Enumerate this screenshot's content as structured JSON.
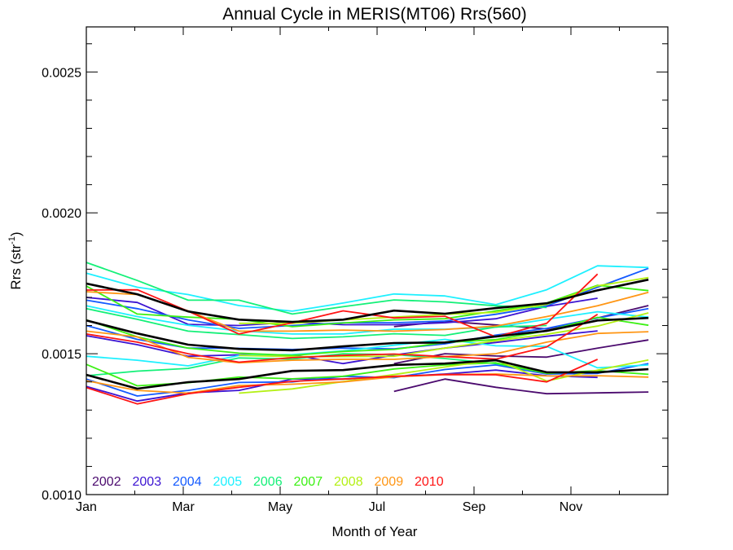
{
  "chart_data": {
    "type": "line",
    "title": "Annual Cycle in MERIS(MT06) Rrs(560)",
    "xlabel": "Month of Year",
    "ylabel": "Rrs (str",
    "ylabel_sup": "-1",
    "ylabel_close": ")",
    "xlim": [
      1,
      13
    ],
    "ylim": [
      0.001,
      0.00266
    ],
    "grid": false,
    "x_ticks": [
      {
        "value": 1,
        "label": "Jan"
      },
      {
        "value": 3,
        "label": "Mar"
      },
      {
        "value": 5,
        "label": "May"
      },
      {
        "value": 7,
        "label": "Jul"
      },
      {
        "value": 9,
        "label": "Sep"
      },
      {
        "value": 11,
        "label": "Nov"
      }
    ],
    "x_minor_ticks": [
      2,
      4,
      6,
      8,
      10,
      12
    ],
    "y_ticks": [
      {
        "value": 0.001,
        "label": "0.0010"
      },
      {
        "value": 0.0015,
        "label": "0.0015"
      },
      {
        "value": 0.002,
        "label": "0.0020"
      },
      {
        "value": 0.0025,
        "label": "0.0025"
      }
    ],
    "y_minor_ticks": [
      0.0011,
      0.0012,
      0.0013,
      0.0014,
      0.0016,
      0.0017,
      0.0018,
      0.0019,
      0.0021,
      0.0022,
      0.0023,
      0.0024,
      0.0026
    ],
    "legend_position": "bottom-left",
    "legend": [
      {
        "label": "2002",
        "color": "#4b0a6e"
      },
      {
        "label": "2003",
        "color": "#3c14d2"
      },
      {
        "label": "2004",
        "color": "#145aff"
      },
      {
        "label": "2005",
        "color": "#1ef0ff"
      },
      {
        "label": "2006",
        "color": "#14f078"
      },
      {
        "label": "2007",
        "color": "#3cf014"
      },
      {
        "label": "2008",
        "color": "#b4f014"
      },
      {
        "label": "2009",
        "color": "#ff9614"
      },
      {
        "label": "2010",
        "color": "#ff1414"
      }
    ],
    "x": [
      1.0,
      2.05,
      3.1,
      4.15,
      5.25,
      6.3,
      7.35,
      8.4,
      9.45,
      10.5,
      11.55,
      12.6
    ],
    "series": [
      {
        "name": "2002 upper",
        "color": "#4b0a6e",
        "values": [
          null,
          null,
          null,
          null,
          null,
          null,
          0.001596,
          0.001615,
          0.001602,
          0.001588,
          0.001627,
          0.001671
        ]
      },
      {
        "name": "2002 mean",
        "color": "#4b0a6e",
        "values": [
          null,
          null,
          null,
          null,
          null,
          null,
          0.001465,
          0.0015,
          0.001492,
          0.001488,
          0.00152,
          0.001549
        ]
      },
      {
        "name": "2002 lower",
        "color": "#4b0a6e",
        "values": [
          null,
          null,
          null,
          null,
          null,
          null,
          0.001366,
          0.00141,
          0.001381,
          0.001358,
          0.001361,
          0.001364
        ]
      },
      {
        "name": "2003 upper",
        "color": "#3c14d2",
        "values": [
          0.0017,
          0.001682,
          0.001604,
          0.0016,
          0.001612,
          0.001603,
          0.001603,
          0.00161,
          0.001624,
          0.001668,
          0.001697,
          null
        ]
      },
      {
        "name": "2003 mean",
        "color": "#3c14d2",
        "values": [
          0.001564,
          0.001532,
          0.001491,
          0.001496,
          0.001496,
          0.001465,
          0.001495,
          0.00152,
          0.00154,
          0.001562,
          0.001581,
          null
        ]
      },
      {
        "name": "2003 lower",
        "color": "#3c14d2",
        "values": [
          0.001384,
          0.001332,
          0.001361,
          0.00137,
          0.00141,
          0.00141,
          0.001418,
          0.001428,
          0.001442,
          0.001422,
          0.001416,
          null
        ]
      },
      {
        "name": "2004 upper",
        "color": "#145aff",
        "values": [
          0.00169,
          0.00166,
          0.00162,
          0.00159,
          0.0016,
          0.00161,
          0.00161,
          0.001616,
          0.00164,
          0.00167,
          0.001736,
          0.001803
        ]
      },
      {
        "name": "2004 mean",
        "color": "#145aff",
        "values": [
          0.0016,
          0.001551,
          0.00152,
          0.001519,
          0.001515,
          0.00152,
          0.001517,
          0.001535,
          0.001566,
          0.00159,
          0.001627,
          0.00166
        ]
      },
      {
        "name": "2004 lower",
        "color": "#145aff",
        "values": [
          0.00141,
          0.00135,
          0.00137,
          0.001398,
          0.0014,
          0.00142,
          0.001415,
          0.001444,
          0.00146,
          0.001428,
          0.00143,
          0.001465
        ]
      },
      {
        "name": "2005 upper",
        "color": "#1ef0ff",
        "values": [
          0.001786,
          0.001736,
          0.00171,
          0.001671,
          0.001651,
          0.00168,
          0.001712,
          0.001705,
          0.001674,
          0.001727,
          0.001812,
          0.001806
        ]
      },
      {
        "name": "2005 mean",
        "color": "#1ef0ff",
        "values": [
          0.00167,
          0.001632,
          0.001601,
          0.001581,
          0.00157,
          0.00157,
          0.001587,
          0.001587,
          0.001594,
          0.001622,
          0.001649,
          0.00163
        ]
      },
      {
        "name": "2005 lower",
        "color": "#1ef0ff",
        "values": [
          0.001491,
          0.001477,
          0.001457,
          0.001494,
          0.001497,
          0.00151,
          0.00153,
          0.001551,
          0.001528,
          0.001526,
          0.00145,
          0.00146
        ]
      },
      {
        "name": "2006 upper",
        "color": "#14f078",
        "values": [
          0.001824,
          0.00176,
          0.00169,
          0.00169,
          0.001641,
          0.001667,
          0.001691,
          0.001684,
          0.00167,
          0.001664,
          null,
          null
        ]
      },
      {
        "name": "2006 mean",
        "color": "#14f078",
        "values": [
          0.00166,
          0.001622,
          0.00158,
          0.001568,
          0.001554,
          0.00156,
          0.001571,
          0.001565,
          0.001595,
          0.0016,
          null,
          null
        ]
      },
      {
        "name": "2006 lower",
        "color": "#14f078",
        "values": [
          0.001422,
          0.001438,
          0.001448,
          0.001485,
          0.001481,
          0.0015,
          0.001497,
          0.001483,
          0.001465,
          0.001431,
          null,
          null
        ]
      },
      {
        "name": "2007 upper",
        "color": "#3cf014",
        "values": [
          0.00174,
          0.001641,
          0.00163,
          0.001622,
          0.001596,
          0.001609,
          0.00162,
          0.001624,
          0.001652,
          0.00168,
          0.001743,
          0.001724
        ]
      },
      {
        "name": "2007 mean",
        "color": "#3cf014",
        "values": [
          0.00162,
          0.00156,
          0.00152,
          0.001502,
          0.001494,
          0.001508,
          0.001515,
          0.00154,
          0.00155,
          0.001581,
          0.001629,
          0.001601
        ]
      },
      {
        "name": "2007 lower",
        "color": "#3cf014",
        "values": [
          0.001462,
          0.001386,
          0.001397,
          0.001417,
          0.001411,
          0.00142,
          0.001446,
          0.00146,
          0.001468,
          0.00143,
          0.00144,
          0.001427
        ]
      },
      {
        "name": "2008 upper",
        "color": "#b4f014",
        "values": [
          null,
          null,
          null,
          0.001608,
          0.001608,
          0.00162,
          0.00163,
          0.00164,
          0.001647,
          0.001675,
          0.001741,
          0.00177
        ]
      },
      {
        "name": "2008 mean",
        "color": "#b4f014",
        "values": [
          null,
          null,
          null,
          0.001494,
          0.00149,
          0.00149,
          0.001491,
          0.00152,
          0.001546,
          0.001569,
          0.001598,
          0.001645
        ]
      },
      {
        "name": "2008 lower",
        "color": "#b4f014",
        "values": [
          null,
          null,
          null,
          0.00136,
          0.001375,
          0.001401,
          0.001426,
          0.001453,
          0.001478,
          0.001403,
          0.001442,
          0.001478
        ]
      },
      {
        "name": "2009 upper",
        "color": "#ff9614",
        "values": [
          0.00172,
          0.00171,
          0.001652,
          0.00158,
          0.00158,
          0.001584,
          0.00158,
          0.001586,
          0.001598,
          0.001632,
          0.00167,
          0.001718
        ]
      },
      {
        "name": "2009 mean",
        "color": "#ff9614",
        "values": [
          0.00158,
          0.00156,
          0.001487,
          0.001468,
          0.001477,
          0.00148,
          0.00148,
          0.00149,
          0.0015,
          0.001541,
          0.001572,
          0.001578
        ]
      },
      {
        "name": "2009 lower",
        "color": "#ff9614",
        "values": [
          0.001404,
          0.00137,
          0.00136,
          0.001387,
          0.001392,
          0.0014,
          0.001418,
          0.001426,
          0.001428,
          0.001421,
          0.001422,
          0.001417
        ]
      },
      {
        "name": "2010 upper",
        "color": "#ff1414",
        "values": [
          0.001726,
          0.001727,
          0.001651,
          0.00157,
          0.00161,
          0.001652,
          0.001627,
          0.001633,
          0.00156,
          0.001608,
          0.001783,
          null
        ]
      },
      {
        "name": "2010 mean",
        "color": "#ff1414",
        "values": [
          0.00157,
          0.001541,
          0.0015,
          0.00147,
          0.001486,
          0.001494,
          0.001499,
          0.00149,
          0.001481,
          0.001524,
          0.00164,
          null
        ]
      },
      {
        "name": "2010 lower",
        "color": "#ff1414",
        "values": [
          0.00138,
          0.001322,
          0.001358,
          0.001381,
          0.001402,
          0.00141,
          0.00142,
          0.001426,
          0.001425,
          0.0014,
          0.00148,
          null
        ]
      },
      {
        "name": "Climatology upper",
        "color": "#000000",
        "values": [
          0.001749,
          0.001711,
          0.00165,
          0.001621,
          0.001613,
          0.001621,
          0.001653,
          0.001642,
          0.001662,
          0.001679,
          0.001725,
          0.001763
        ]
      },
      {
        "name": "Climatology mean",
        "color": "#000000",
        "values": [
          0.001618,
          0.001572,
          0.001532,
          0.001517,
          0.001512,
          0.001526,
          0.001538,
          0.00154,
          0.001561,
          0.001581,
          0.001618,
          0.001627
        ]
      },
      {
        "name": "Climatology lower",
        "color": "#000000",
        "values": [
          0.001425,
          0.001376,
          0.001399,
          0.00141,
          0.001439,
          0.001442,
          0.00146,
          0.001465,
          0.001477,
          0.001434,
          0.001434,
          0.001445
        ]
      }
    ]
  }
}
